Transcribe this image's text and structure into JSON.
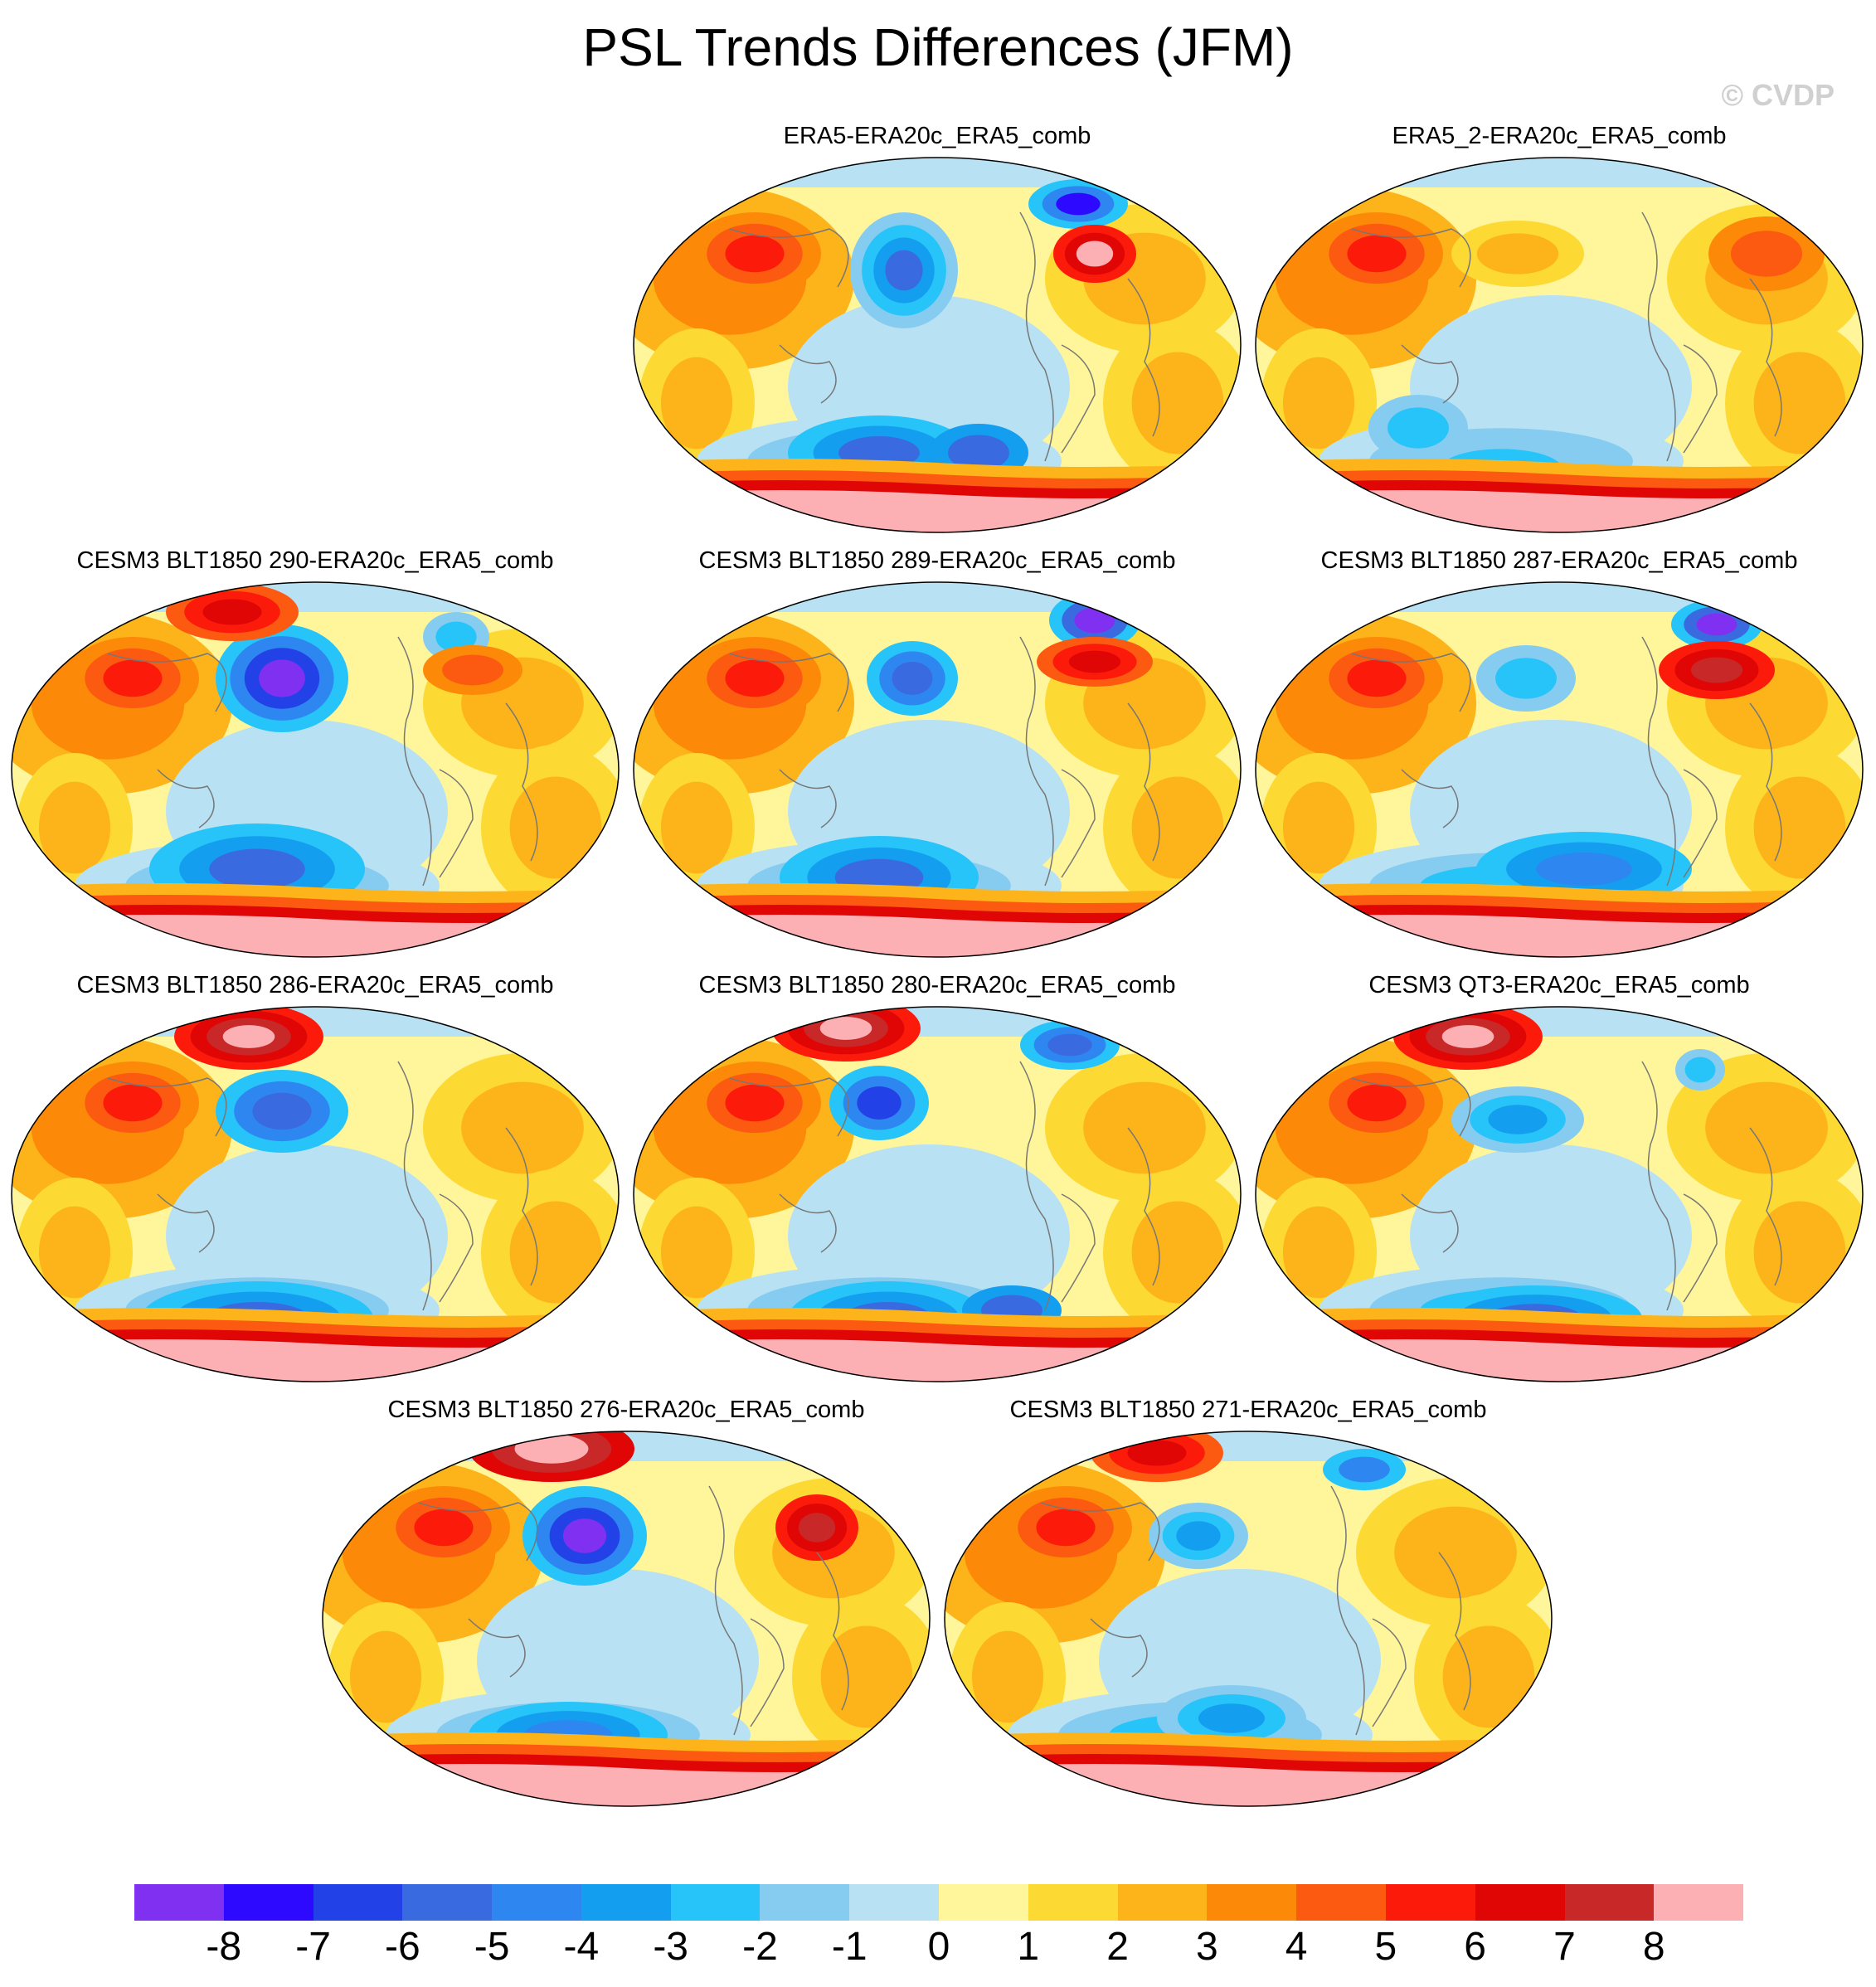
{
  "figure": {
    "title": "PSL Trends Differences (JFM)",
    "credit": "© CVDP"
  },
  "panels": [
    {
      "label": "ERA5-ERA20c_ERA5_comb",
      "variant": 0
    },
    {
      "label": "ERA5_2-ERA20c_ERA5_comb",
      "variant": 1
    },
    {
      "label": "CESM3 BLT1850 290-ERA20c_ERA5_comb",
      "variant": 2
    },
    {
      "label": "CESM3 BLT1850 289-ERA20c_ERA5_comb",
      "variant": 3
    },
    {
      "label": "CESM3 BLT1850 287-ERA20c_ERA5_comb",
      "variant": 4
    },
    {
      "label": "CESM3 BLT1850 286-ERA20c_ERA5_comb",
      "variant": 5
    },
    {
      "label": "CESM3 BLT1850 280-ERA20c_ERA5_comb",
      "variant": 6
    },
    {
      "label": "CESM3 QT3-ERA20c_ERA5_comb",
      "variant": 7
    },
    {
      "label": "CESM3 BLT1850 276-ERA20c_ERA5_comb",
      "variant": 8
    },
    {
      "label": "CESM3 BLT1850 271-ERA20c_ERA5_comb",
      "variant": 9
    }
  ],
  "colorbar": {
    "colors": [
      "#8030f0",
      "#2d0aff",
      "#2242e8",
      "#3a6ae0",
      "#2e86f0",
      "#139ef0",
      "#26c4f8",
      "#86ccf0",
      "#b8e2f4",
      "#fff59a",
      "#fdd934",
      "#fcb41a",
      "#fc8a08",
      "#fc5a10",
      "#fc1a0a",
      "#e00606",
      "#c82828",
      "#fcb0b4"
    ],
    "tick_labels": [
      "-8",
      "-7",
      "-6",
      "-5",
      "-4",
      "-3",
      "-2",
      "-1",
      "0",
      "1",
      "2",
      "3",
      "4",
      "5",
      "6",
      "7",
      "8"
    ]
  }
}
